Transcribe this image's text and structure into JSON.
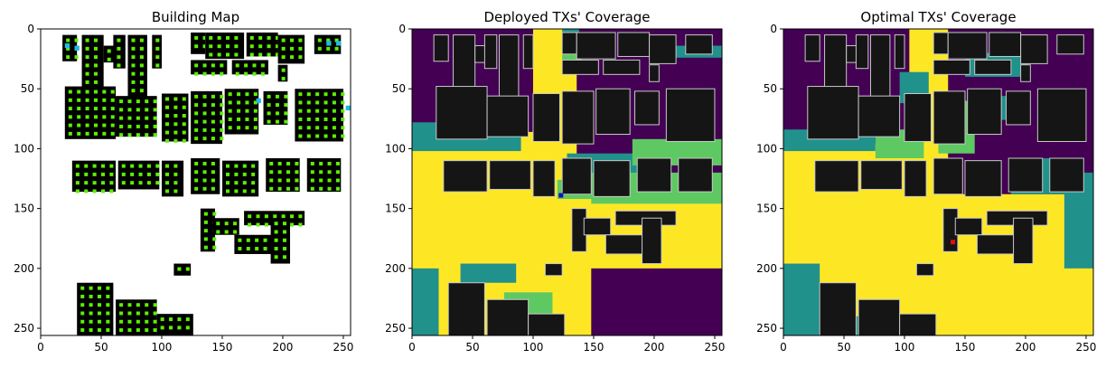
{
  "chart_data": [
    {
      "type": "heatmap",
      "title": "Building Map",
      "xlim": [
        0,
        256
      ],
      "ylim": [
        256,
        0
      ],
      "xticks": [
        "0",
        "50",
        "100",
        "150",
        "200",
        "250"
      ],
      "yticks": [
        "0",
        "50",
        "100",
        "150",
        "200",
        "250"
      ],
      "grid": false,
      "legend": "none",
      "content": "building footprints with candidate transmitter grid points",
      "colors": {
        "background": "#ffffff",
        "building": "#000000",
        "candidate": "#5cf000",
        "deployed": "#21b8e8"
      }
    },
    {
      "type": "heatmap",
      "title": "Deployed TXs' Coverage",
      "xlim": [
        0,
        256
      ],
      "ylim": [
        256,
        0
      ],
      "xticks": [
        "0",
        "50",
        "100",
        "150",
        "200",
        "250"
      ],
      "yticks": [
        "0",
        "50",
        "100",
        "150",
        "200",
        "250"
      ],
      "grid": false,
      "legend": "none",
      "colormap": "viridis",
      "transmitter": {
        "x": 123,
        "y": 139,
        "color": "#1010c0"
      }
    },
    {
      "type": "heatmap",
      "title": "Optimal TXs' Coverage",
      "xlim": [
        0,
        256
      ],
      "ylim": [
        256,
        0
      ],
      "xticks": [
        "0",
        "50",
        "100",
        "150",
        "200",
        "250"
      ],
      "yticks": [
        "0",
        "50",
        "100",
        "150",
        "200",
        "250"
      ],
      "grid": false,
      "legend": "none",
      "colormap": "viridis",
      "transmitter": {
        "x": 140,
        "y": 178,
        "color": "#e01010"
      }
    }
  ],
  "palette": {
    "coverage_high": "#fde725",
    "coverage_mid_high": "#5ec962",
    "coverage_mid": "#21918c",
    "coverage_low": "#440154",
    "building_dark": "#151515"
  }
}
